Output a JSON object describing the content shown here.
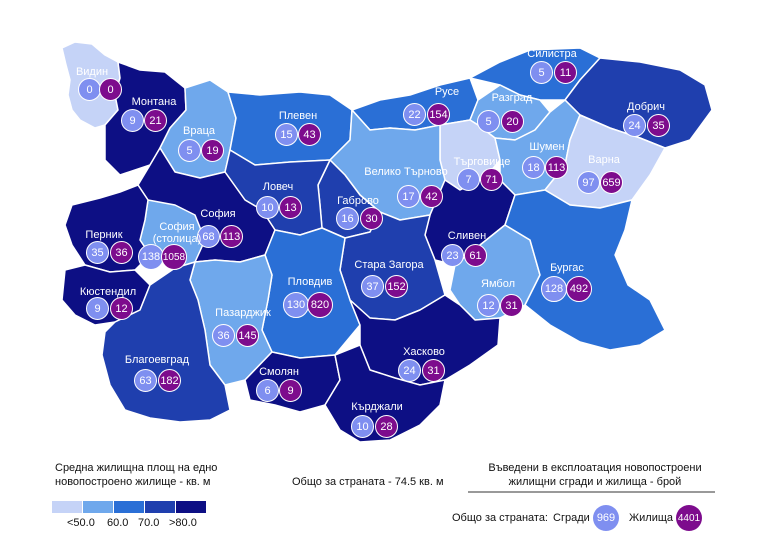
{
  "regions": [
    {
      "name": "Видин",
      "buildings": "0",
      "dwellings": "0"
    },
    {
      "name": "Монтана",
      "buildings": "9",
      "dwellings": "21"
    },
    {
      "name": "Враца",
      "buildings": "5",
      "dwellings": "19"
    },
    {
      "name": "Плевен",
      "buildings": "15",
      "dwellings": "43"
    },
    {
      "name": "Русе",
      "buildings": "22",
      "dwellings": "154"
    },
    {
      "name": "Силистра",
      "buildings": "5",
      "dwellings": "11"
    },
    {
      "name": "Разград",
      "buildings": "5",
      "dwellings": "20"
    },
    {
      "name": "Добрич",
      "buildings": "24",
      "dwellings": "35"
    },
    {
      "name": "Търговище",
      "buildings": "7",
      "dwellings": "71"
    },
    {
      "name": "Шумен",
      "buildings": "18",
      "dwellings": "113"
    },
    {
      "name": "Варна",
      "buildings": "97",
      "dwellings": "659"
    },
    {
      "name": "Велико Търново",
      "buildings": "17",
      "dwellings": "42"
    },
    {
      "name": "Габрово",
      "buildings": "16",
      "dwellings": "30"
    },
    {
      "name": "Ловеч",
      "buildings": "10",
      "dwellings": "13"
    },
    {
      "name": "София",
      "buildings": "68",
      "dwellings": "113"
    },
    {
      "name": "София (столица)",
      "buildings": "138",
      "dwellings": "1058"
    },
    {
      "name": "Перник",
      "buildings": "35",
      "dwellings": "36"
    },
    {
      "name": "Кюстендил",
      "buildings": "9",
      "dwellings": "12"
    },
    {
      "name": "Сливен",
      "buildings": "23",
      "dwellings": "61"
    },
    {
      "name": "Стара Загора",
      "buildings": "37",
      "dwellings": "152"
    },
    {
      "name": "Пловдив",
      "buildings": "130",
      "dwellings": "820"
    },
    {
      "name": "Пазарджик",
      "buildings": "36",
      "dwellings": "145"
    },
    {
      "name": "Ямбол",
      "buildings": "12",
      "dwellings": "31"
    },
    {
      "name": "Бургас",
      "buildings": "128",
      "dwellings": "492"
    },
    {
      "name": "Благоевград",
      "buildings": "63",
      "dwellings": "182"
    },
    {
      "name": "Смолян",
      "buildings": "6",
      "dwellings": "9"
    },
    {
      "name": "Хасково",
      "buildings": "24",
      "dwellings": "31"
    },
    {
      "name": "Кърджали",
      "buildings": "10",
      "dwellings": "28"
    }
  ],
  "legend_area": {
    "title_line1": "Средна жилищна площ на едно",
    "title_line2": "новопостроено жилище - кв. м",
    "ticks": [
      "<50.0",
      "60.0",
      "70.0",
      ">80.0"
    ],
    "colors": [
      "#c5d3f7",
      "#6fa8ec",
      "#2a6fd6",
      "#1f3fae",
      "#0d0f84"
    ]
  },
  "country_total_area": "Общо за страната - 74.5 кв. м",
  "legend_counts": {
    "title_line1": "Въведени в експлоатация новопостроени",
    "title_line2": "жилищни сгради и жилища - брой",
    "total_label": "Общо за страната:",
    "buildings_label": "Сгради",
    "buildings_total": "969",
    "dwellings_label": "Жилища",
    "dwellings_total": "4401",
    "buildings_color": "#7f8ff0",
    "dwellings_color": "#7d0c8d"
  }
}
